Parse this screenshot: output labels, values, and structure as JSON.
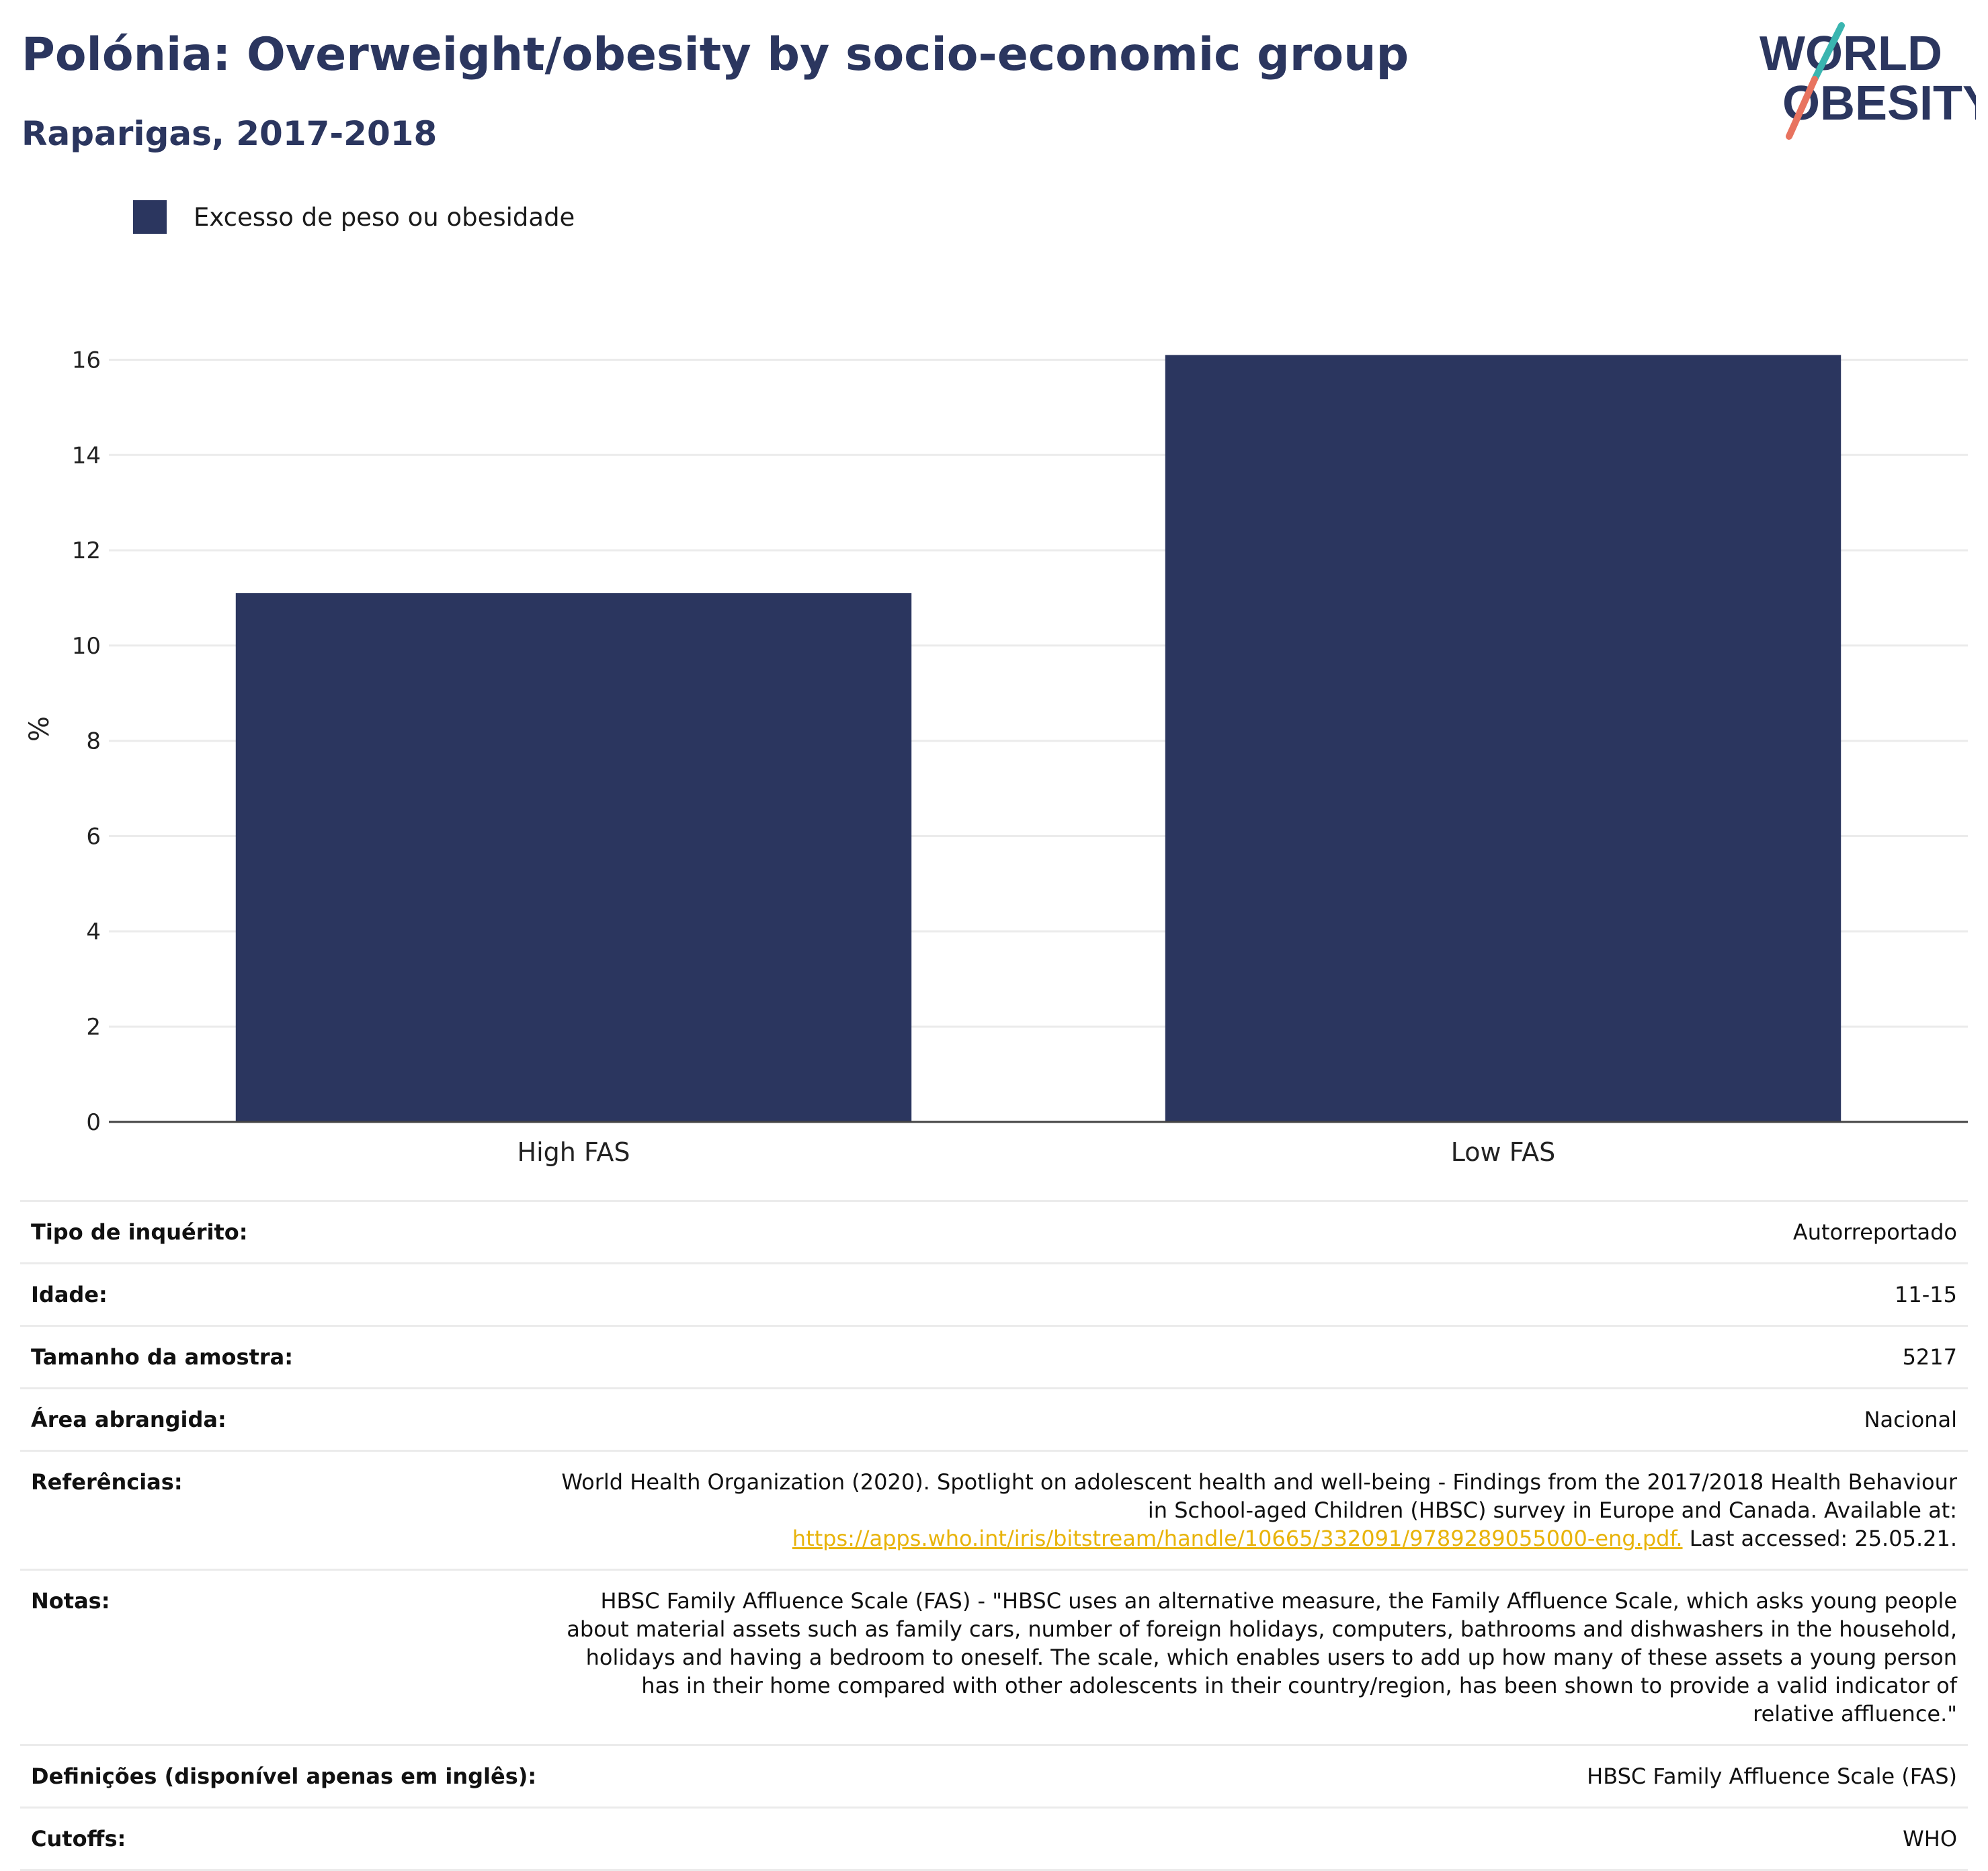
{
  "header": {
    "title": "Polónia: Overweight/obesity by socio-economic group",
    "subtitle": "Raparigas, 2017-2018"
  },
  "logo": {
    "line1": "WORLD",
    "line2": "OBESITY"
  },
  "colors": {
    "bar": "#2b365f",
    "title": "#2b365f",
    "link": "#e8b30a",
    "logo_teal": "#3ab5b0",
    "logo_coral": "#e8735f"
  },
  "legend": {
    "label": "Excesso de peso ou obesidade"
  },
  "chart_data": {
    "type": "bar",
    "categories": [
      "High FAS",
      "Low FAS"
    ],
    "series": [
      {
        "name": "Excesso de peso ou obesidade",
        "values": [
          11.1,
          16.1
        ]
      }
    ],
    "ylabel": "%",
    "xlabel": "",
    "ylim": [
      0,
      16.5
    ],
    "yticks": [
      0,
      2,
      4,
      6,
      8,
      10,
      12,
      14,
      16
    ],
    "grid": true,
    "legend_position": "top-left"
  },
  "info": {
    "survey_type": {
      "label": "Tipo de inquérito:",
      "value": "Autorreportado"
    },
    "age": {
      "label": "Idade:",
      "value": "11-15"
    },
    "sample_size": {
      "label": "Tamanho da amostra:",
      "value": "5217"
    },
    "area": {
      "label": "Área abrangida:",
      "value": "Nacional"
    },
    "references": {
      "label": "Referências:",
      "text": "World Health Organization (2020). Spotlight on adolescent health and well-being - Findings from the 2017/2018 Health Behaviour in School-aged Children (HBSC) survey in Europe and Canada. Available at:",
      "link": "https://apps.who.int/iris/bitstream/handle/10665/332091/9789289055000-eng.pdf.",
      "suffix": "Last accessed: 25.05.21."
    },
    "notes": {
      "label": "Notas:",
      "value": "HBSC Family Affluence Scale (FAS) - \"HBSC uses an alternative measure, the Family Affluence Scale, which asks young people about material assets such as family cars, number of foreign holidays, computers, bathrooms and dishwashers in the household, holidays and having a bedroom to oneself. The scale, which enables users to add up how many of these assets a young person has in their home compared with other adolescents in their country/region, has been shown to provide a valid indicator of relative affluence.\""
    },
    "definitions": {
      "label": "Definições (disponível apenas em inglês):",
      "value": "HBSC Family Affluence Scale (FAS)"
    },
    "cutoffs": {
      "label": "Cutoffs:",
      "value": "WHO"
    }
  }
}
